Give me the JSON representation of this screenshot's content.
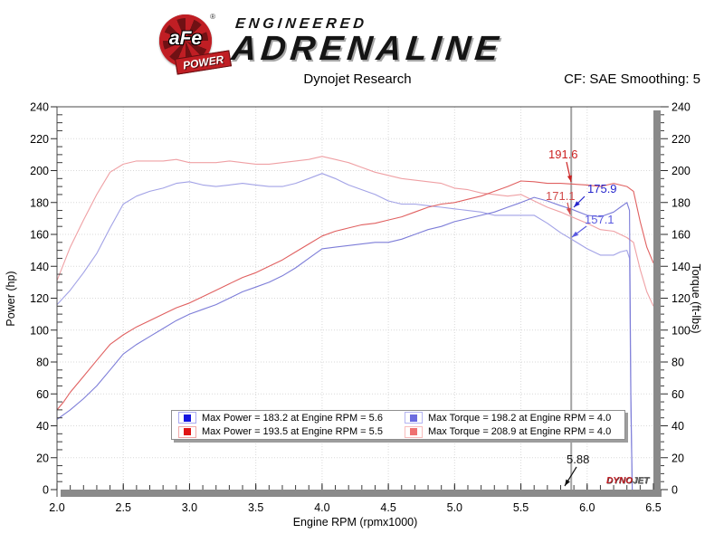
{
  "header": {
    "logo": {
      "badge_text": "aFe",
      "reg_mark": "®",
      "banner": "POWER",
      "line1": "ENGINEERED",
      "line2": "ADRENALINE"
    },
    "subtitle_left": "Dynojet Research",
    "subtitle_right": "CF: SAE Smoothing: 5"
  },
  "chart": {
    "x_axis": {
      "title": "Engine RPM (rpmx1000)",
      "min": 2.0,
      "max": 6.5,
      "major_step": 0.5,
      "minor_step": 0.1,
      "labels": [
        "2.0",
        "2.5",
        "3.0",
        "3.5",
        "4.0",
        "4.5",
        "5.0",
        "5.5",
        "6.0",
        "6.5"
      ]
    },
    "y_left": {
      "title": "Power (hp)",
      "min": 0,
      "max": 240,
      "major_step": 20,
      "minor_step": 5,
      "labels": [
        "0",
        "20",
        "40",
        "60",
        "80",
        "100",
        "120",
        "140",
        "160",
        "180",
        "200",
        "220",
        "240"
      ]
    },
    "y_right": {
      "title": "Torque (ft-lbs)",
      "min": 0,
      "max": 240,
      "major_step": 20,
      "minor_step": 5,
      "labels": [
        "0",
        "20",
        "40",
        "60",
        "80",
        "100",
        "120",
        "140",
        "160",
        "180",
        "200",
        "220",
        "240"
      ]
    },
    "legend": [
      {
        "swatch": "#1414e0",
        "swatch_border": "#a8a8f0",
        "label": "Max Power = 183.2 at Engine RPM = 5.6"
      },
      {
        "swatch": "#e01414",
        "swatch_border": "#f0a8a8",
        "label": "Max Power = 193.5 at Engine RPM = 5.5"
      },
      {
        "swatch": "#6b6be0",
        "swatch_border": "#b4b4f2",
        "label": "Max Torque = 198.2 at Engine RPM = 4.0"
      },
      {
        "swatch": "#ef7272",
        "swatch_border": "#f8bcbc",
        "label": "Max Torque = 208.9 at Engine RPM = 4.0"
      }
    ],
    "cursor": {
      "x": 5.88,
      "label": "5.88",
      "color": "#a3a3a3"
    },
    "annotations": [
      {
        "text": "191.6",
        "color": "#cc2222"
      },
      {
        "text": "175.9",
        "color": "#2525cc"
      },
      {
        "text": "171.1",
        "color": "#d24a4a"
      },
      {
        "text": "157.1",
        "color": "#5a5ae0"
      },
      {
        "text": "5.88",
        "color": "#101010"
      }
    ],
    "watermark": {
      "part1": "DYNO",
      "part2": "JET"
    },
    "grid_color": "#d9d9d9",
    "frame_color": "#4a4a4a",
    "bar_color": "#8a8a8a"
  },
  "chart_data": {
    "type": "line",
    "title": "Dynojet Research",
    "xlabel": "Engine RPM (rpmx1000)",
    "ylabel_left": "Power (hp)",
    "ylabel_right": "Torque (ft-lbs)",
    "xlim": [
      2.0,
      6.5
    ],
    "ylim": [
      0,
      240
    ],
    "grid": true,
    "legend_position": "bottom-center",
    "cursor_rpm": 5.88,
    "cursor_values": {
      "power_red": 191.6,
      "power_blue": 175.9,
      "torque_red": 171.1,
      "torque_blue": 157.1
    },
    "series": [
      {
        "id": "torque-red",
        "name": "Torque (red run), max 208.9 ft-lbs @ 4.0",
        "axis": "right",
        "color": "#efa0a4",
        "points": [
          [
            2.0,
            131
          ],
          [
            2.1,
            152
          ],
          [
            2.2,
            169
          ],
          [
            2.3,
            185
          ],
          [
            2.4,
            199
          ],
          [
            2.5,
            204
          ],
          [
            2.6,
            206
          ],
          [
            2.7,
            206
          ],
          [
            2.8,
            206
          ],
          [
            2.9,
            207
          ],
          [
            3.0,
            205
          ],
          [
            3.1,
            205
          ],
          [
            3.2,
            205
          ],
          [
            3.3,
            206
          ],
          [
            3.4,
            205
          ],
          [
            3.5,
            204
          ],
          [
            3.6,
            204
          ],
          [
            3.7,
            205
          ],
          [
            3.8,
            206
          ],
          [
            3.9,
            207
          ],
          [
            4.0,
            208.9
          ],
          [
            4.1,
            207
          ],
          [
            4.2,
            205
          ],
          [
            4.3,
            202
          ],
          [
            4.4,
            199
          ],
          [
            4.5,
            197
          ],
          [
            4.6,
            195
          ],
          [
            4.7,
            194
          ],
          [
            4.8,
            193
          ],
          [
            4.9,
            192
          ],
          [
            5.0,
            189
          ],
          [
            5.1,
            188
          ],
          [
            5.2,
            186
          ],
          [
            5.3,
            185
          ],
          [
            5.4,
            184
          ],
          [
            5.5,
            185
          ],
          [
            5.6,
            181
          ],
          [
            5.7,
            177
          ],
          [
            5.8,
            174
          ],
          [
            5.88,
            171.1
          ],
          [
            6.0,
            167
          ],
          [
            6.1,
            163
          ],
          [
            6.2,
            162
          ],
          [
            6.3,
            158
          ],
          [
            6.35,
            155
          ],
          [
            6.4,
            138
          ],
          [
            6.45,
            124
          ],
          [
            6.5,
            115
          ]
        ]
      },
      {
        "id": "torque-blue",
        "name": "Torque (blue run), max 198.2 ft-lbs @ 4.0",
        "axis": "right",
        "color": "#a2a2e6",
        "points": [
          [
            2.0,
            116
          ],
          [
            2.1,
            125
          ],
          [
            2.2,
            136
          ],
          [
            2.3,
            148
          ],
          [
            2.4,
            164
          ],
          [
            2.5,
            179
          ],
          [
            2.6,
            184
          ],
          [
            2.7,
            187
          ],
          [
            2.8,
            189
          ],
          [
            2.9,
            192
          ],
          [
            3.0,
            193
          ],
          [
            3.1,
            191
          ],
          [
            3.2,
            190
          ],
          [
            3.3,
            191
          ],
          [
            3.4,
            192
          ],
          [
            3.5,
            191
          ],
          [
            3.6,
            190
          ],
          [
            3.7,
            190
          ],
          [
            3.8,
            192
          ],
          [
            3.9,
            195
          ],
          [
            4.0,
            198.2
          ],
          [
            4.1,
            195
          ],
          [
            4.2,
            191
          ],
          [
            4.3,
            188
          ],
          [
            4.4,
            185
          ],
          [
            4.5,
            181
          ],
          [
            4.6,
            179
          ],
          [
            4.7,
            179
          ],
          [
            4.8,
            178
          ],
          [
            4.9,
            177
          ],
          [
            5.0,
            176
          ],
          [
            5.1,
            175
          ],
          [
            5.2,
            174
          ],
          [
            5.3,
            172
          ],
          [
            5.4,
            172
          ],
          [
            5.5,
            172
          ],
          [
            5.6,
            172
          ],
          [
            5.7,
            167
          ],
          [
            5.8,
            161
          ],
          [
            5.88,
            157.1
          ],
          [
            6.0,
            151
          ],
          [
            6.1,
            147
          ],
          [
            6.2,
            147
          ],
          [
            6.25,
            149
          ],
          [
            6.3,
            150
          ],
          [
            6.32,
            145
          ],
          [
            6.33,
            50
          ],
          [
            6.34,
            0
          ]
        ]
      },
      {
        "id": "power-red",
        "name": "Power (red run), max 193.5 hp @ 5.5",
        "axis": "left",
        "color": "#e06060",
        "points": [
          [
            2.0,
            50
          ],
          [
            2.05,
            55
          ],
          [
            2.1,
            61
          ],
          [
            2.2,
            71
          ],
          [
            2.3,
            81
          ],
          [
            2.4,
            91
          ],
          [
            2.5,
            97
          ],
          [
            2.6,
            102
          ],
          [
            2.7,
            106
          ],
          [
            2.8,
            110
          ],
          [
            2.9,
            114
          ],
          [
            3.0,
            117
          ],
          [
            3.1,
            121
          ],
          [
            3.2,
            125
          ],
          [
            3.3,
            129
          ],
          [
            3.4,
            133
          ],
          [
            3.5,
            136
          ],
          [
            3.6,
            140
          ],
          [
            3.7,
            144
          ],
          [
            3.8,
            149
          ],
          [
            3.9,
            154
          ],
          [
            4.0,
            159
          ],
          [
            4.1,
            162
          ],
          [
            4.2,
            164
          ],
          [
            4.3,
            166
          ],
          [
            4.4,
            167
          ],
          [
            4.5,
            169
          ],
          [
            4.6,
            171
          ],
          [
            4.7,
            174
          ],
          [
            4.8,
            177
          ],
          [
            4.9,
            179
          ],
          [
            5.0,
            180
          ],
          [
            5.1,
            182
          ],
          [
            5.2,
            184
          ],
          [
            5.3,
            187
          ],
          [
            5.4,
            190
          ],
          [
            5.5,
            193.5
          ],
          [
            5.6,
            193
          ],
          [
            5.7,
            192
          ],
          [
            5.8,
            192
          ],
          [
            5.88,
            191.6
          ],
          [
            6.0,
            191
          ],
          [
            6.1,
            190
          ],
          [
            6.2,
            192
          ],
          [
            6.3,
            190
          ],
          [
            6.35,
            187
          ],
          [
            6.4,
            168
          ],
          [
            6.45,
            152
          ],
          [
            6.5,
            142
          ]
        ]
      },
      {
        "id": "power-blue",
        "name": "Power (blue run), max 183.2 hp @ 5.6",
        "axis": "left",
        "color": "#7d7dd8",
        "points": [
          [
            2.0,
            44
          ],
          [
            2.1,
            50
          ],
          [
            2.2,
            57
          ],
          [
            2.3,
            65
          ],
          [
            2.4,
            75
          ],
          [
            2.5,
            85
          ],
          [
            2.6,
            91
          ],
          [
            2.7,
            96
          ],
          [
            2.8,
            101
          ],
          [
            2.9,
            106
          ],
          [
            3.0,
            110
          ],
          [
            3.1,
            113
          ],
          [
            3.2,
            116
          ],
          [
            3.3,
            120
          ],
          [
            3.4,
            124
          ],
          [
            3.5,
            127
          ],
          [
            3.6,
            130
          ],
          [
            3.7,
            134
          ],
          [
            3.8,
            139
          ],
          [
            3.9,
            145
          ],
          [
            4.0,
            151
          ],
          [
            4.1,
            152
          ],
          [
            4.2,
            153
          ],
          [
            4.3,
            154
          ],
          [
            4.4,
            155
          ],
          [
            4.5,
            155
          ],
          [
            4.6,
            157
          ],
          [
            4.7,
            160
          ],
          [
            4.8,
            163
          ],
          [
            4.9,
            165
          ],
          [
            5.0,
            168
          ],
          [
            5.1,
            170
          ],
          [
            5.2,
            172
          ],
          [
            5.3,
            174
          ],
          [
            5.4,
            177
          ],
          [
            5.5,
            180
          ],
          [
            5.6,
            183.2
          ],
          [
            5.7,
            181
          ],
          [
            5.8,
            178
          ],
          [
            5.88,
            175.9
          ],
          [
            6.0,
            172
          ],
          [
            6.1,
            171
          ],
          [
            6.2,
            174
          ],
          [
            6.25,
            177
          ],
          [
            6.3,
            180
          ],
          [
            6.32,
            175
          ],
          [
            6.33,
            60
          ],
          [
            6.34,
            0
          ]
        ]
      }
    ]
  }
}
